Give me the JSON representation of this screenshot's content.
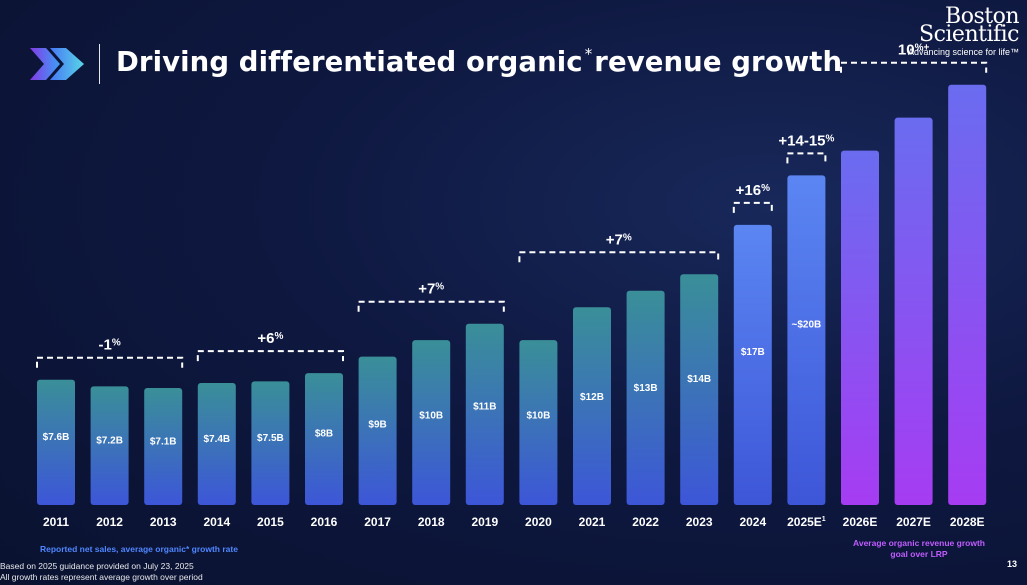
{
  "header": {
    "title_main": "Driving differentiated organic",
    "title_mark": "*",
    "title_end": "revenue growth",
    "brand_line1": "Boston",
    "brand_line2": "Scientific",
    "brand_tagline": "Advancing science for life™"
  },
  "footer": {
    "legend_note": "Reported net sales, average organic* growth rate",
    "lrp_note_line1": "Average organic revenue growth",
    "lrp_note_line2": "goal over LRP",
    "fine_print_1": "Based on 2025 guidance provided on July 23, 2025",
    "fine_print_2": "All growth rates represent average growth over period",
    "page_number": "13"
  },
  "colors": {
    "teal_bar_top": "#3a8f98",
    "blue_bar_bottom": "#3d56d8",
    "blue_bar_top": "#5b86f2",
    "purple_bar_top": "#6a6cf0",
    "purple_bar_bottom": "#a63cf2"
  },
  "chart_data": {
    "type": "bar",
    "categories": [
      "2011",
      "2012",
      "2013",
      "2014",
      "2015",
      "2016",
      "2017",
      "2018",
      "2019",
      "2020",
      "2021",
      "2022",
      "2023",
      "2024",
      "2025E",
      "2026E",
      "2027E",
      "2028E"
    ],
    "category_superscripts": {
      "2025E": "1"
    },
    "values": [
      7.6,
      7.2,
      7.1,
      7.4,
      7.5,
      8,
      9,
      10,
      11,
      10,
      12,
      13,
      14,
      17,
      20,
      21.5,
      23.5,
      25.5
    ],
    "value_labels": [
      "$7.6B",
      "$7.2B",
      "$7.1B",
      "$7.4B",
      "$7.5B",
      "$8B",
      "$9B",
      "$10B",
      "$11B",
      "$10B",
      "$12B",
      "$13B",
      "$14B",
      "$17B",
      "~$20B",
      "",
      "",
      ""
    ],
    "bar_styles": [
      "actual",
      "actual",
      "actual",
      "actual",
      "actual",
      "actual",
      "actual",
      "actual",
      "actual",
      "actual",
      "actual",
      "actual",
      "actual",
      "actual",
      "actual",
      "goal",
      "goal",
      "goal"
    ],
    "ylim": [
      0,
      27
    ],
    "growth_brackets": [
      {
        "from": 0,
        "to": 2,
        "label": "-1",
        "unit": "%"
      },
      {
        "from": 3,
        "to": 5,
        "label": "+6",
        "unit": "%"
      },
      {
        "from": 6,
        "to": 8,
        "label": "+7",
        "unit": "%"
      },
      {
        "from": 9,
        "to": 12,
        "label": "+7",
        "unit": "%"
      },
      {
        "from": 13,
        "to": 13,
        "label": "+16",
        "unit": "%"
      },
      {
        "from": 14,
        "to": 14,
        "label": "+14-15",
        "unit": "%"
      },
      {
        "from": 15,
        "to": 17,
        "label": "10",
        "unit": "%+"
      }
    ]
  }
}
